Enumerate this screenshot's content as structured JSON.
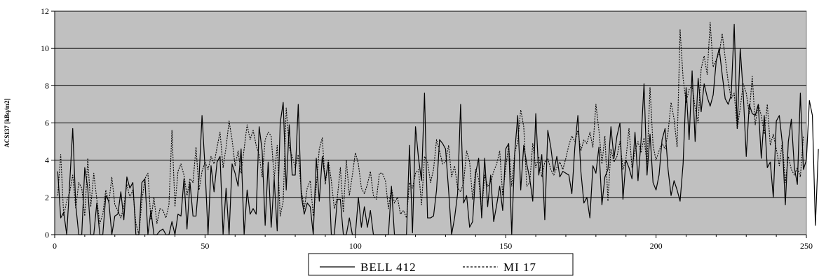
{
  "chart_data": {
    "type": "line",
    "title": "",
    "xlabel": "",
    "ylabel": "ACS137 [kBq/m2]",
    "xlim": [
      0,
      250
    ],
    "ylim": [
      0,
      12
    ],
    "xticks": [
      0,
      50,
      100,
      150,
      200,
      250
    ],
    "yticks": [
      0,
      2,
      4,
      6,
      8,
      10,
      12
    ],
    "x_tick_labels": [
      "0",
      "50",
      "100",
      "150",
      "200",
      "250"
    ],
    "y_tick_labels": [
      "0",
      "2",
      "4",
      "6",
      "8",
      "10",
      "12"
    ],
    "grid": "horizontal",
    "background": "#c0c0c0",
    "legend_position": "bottom",
    "series": [
      {
        "name": "BELL 412",
        "style": "solid",
        "x_start": 1,
        "values": [
          3.4,
          0.9,
          1.2,
          0,
          2.8,
          5.7,
          1.6,
          0,
          0,
          3.6,
          2.5,
          0,
          0,
          1.7,
          0,
          0,
          2.1,
          1.8,
          0,
          1.0,
          1.1,
          2.3,
          0.8,
          3.1,
          2.5,
          2.8,
          0,
          0,
          2.8,
          3.0,
          0,
          1.3,
          0,
          0,
          0.2,
          0.3,
          0,
          0,
          0.7,
          0,
          1.1,
          1.0,
          3.0,
          0.3,
          2.8,
          1.0,
          1.0,
          3.0,
          6.4,
          3.6,
          0,
          3.7,
          2.3,
          3.9,
          4.2,
          0,
          2.5,
          0,
          3.8,
          3.3,
          2.6,
          4.6,
          0,
          2.4,
          1.1,
          1.4,
          1.1,
          5.8,
          4.5,
          0.5,
          3.9,
          0.4,
          3.0,
          0.2,
          6.0,
          7.1,
          2.4,
          5.9,
          3.2,
          3.2,
          7.0,
          2.1,
          1.1,
          1.7,
          1.5,
          0,
          4.1,
          1.8,
          4.2,
          2.9,
          3.9,
          0,
          0,
          1.9,
          1.9,
          0,
          0,
          0.9,
          0,
          0,
          2.0,
          0.4,
          1.5,
          0.4,
          1.3,
          0,
          0,
          0,
          0,
          0,
          0,
          2.6,
          0,
          0,
          0,
          0,
          0,
          4.8,
          0.1,
          5.8,
          4.1,
          2.9,
          7.6,
          0.9,
          0.9,
          1.0,
          2.4,
          5.1,
          4.9,
          4.6,
          2.4,
          0,
          0.9,
          2.2,
          7.0,
          1.7,
          2.1,
          0.4,
          0.7,
          3.3,
          4.1,
          0.9,
          4.1,
          1.5,
          3.2,
          0.7,
          1.6,
          2.6,
          1.3,
          4.6,
          4.9,
          0,
          4.4,
          6.4,
          2.4,
          4.8,
          3.8,
          3.0,
          1.8,
          6.5,
          3.2,
          4.3,
          0.8,
          5.6,
          4.7,
          3.4,
          4.2,
          3.1,
          3.4,
          3.3,
          3.2,
          2.2,
          4.7,
          6.4,
          3.4,
          1.7,
          2.0,
          0.9,
          3.7,
          3.3,
          4.7,
          1.6,
          3.1,
          3.5,
          5.8,
          4.1,
          5.3,
          6.0,
          1.9,
          4.0,
          3.6,
          3.0,
          5.5,
          2.9,
          5.0,
          8.1,
          3.2,
          5.4,
          2.8,
          2.4,
          3.2,
          5.1,
          5.7,
          3.5,
          2.1,
          2.9,
          2.4,
          1.8,
          3.8,
          7.9,
          5.1,
          8.8,
          5.0,
          8.4,
          6.6,
          8.1,
          7.4,
          6.9,
          7.5,
          9.3,
          10.0,
          8.6,
          7.3,
          7.0,
          7.5,
          11.3,
          5.7,
          10.0,
          7.6,
          4.2,
          7.0,
          6.5,
          6.4,
          7.0,
          4.1,
          6.4,
          3.6,
          3.9,
          2.0,
          6.1,
          6.4,
          4.9,
          1.6,
          5.0,
          6.2,
          3.6,
          2.7,
          7.6,
          3.5,
          4.0,
          7.2,
          6.4,
          0.5,
          4.6
        ]
      },
      {
        "name": "MI 17",
        "style": "dotted",
        "x_start": 1,
        "values": [
          2.1,
          4.3,
          1.0,
          1.8,
          2.3,
          3.2,
          1.4,
          2.8,
          2.5,
          1.0,
          4.1,
          1.5,
          3.3,
          1.9,
          0.6,
          1.1,
          2.4,
          1.7,
          3.1,
          1.6,
          1.3,
          0.9,
          1.5,
          2.7,
          2.0,
          2.4,
          0.6,
          0,
          1.8,
          3.0,
          3.3,
          0.8,
          2.0,
          0.6,
          1.4,
          1.3,
          0.9,
          1.6,
          5.6,
          1.5,
          3.4,
          3.8,
          3.2,
          2.1,
          3.0,
          2.8,
          4.7,
          2.4,
          3.4,
          3.9,
          3.5,
          4.2,
          3.8,
          4.7,
          5.5,
          3.6,
          4.7,
          6.1,
          5.1,
          3.7,
          4.5,
          3.3,
          4.6,
          5.9,
          5.1,
          5.6,
          4.8,
          4.3,
          3.1,
          5.1,
          5.5,
          5.3,
          3.0,
          4.8,
          1.0,
          1.8,
          6.8,
          4.7,
          4.2,
          3.6,
          4.3,
          2.4,
          1.4,
          2.5,
          2.9,
          1.0,
          2.6,
          4.6,
          5.2,
          2.7,
          4.0,
          2.9,
          1.4,
          2.0,
          3.6,
          1.2,
          4.0,
          2.1,
          3.2,
          4.4,
          3.8,
          2.5,
          2.2,
          2.7,
          3.4,
          2.1,
          1.9,
          3.3,
          3.3,
          2.9,
          1.4,
          2.5,
          1.7,
          2.0,
          1.1,
          1.3,
          0.9,
          2.8,
          2.5,
          3.3,
          3.5,
          1.6,
          4.2,
          3.9,
          2.8,
          3.5,
          5.1,
          4.5,
          3.8,
          3.9,
          4.8,
          3.1,
          3.7,
          2.5,
          2.3,
          2.8,
          4.5,
          3.9,
          1.9,
          3.5,
          3.0,
          1.2,
          3.2,
          2.6,
          2.8,
          3.4,
          3.8,
          4.5,
          2.1,
          3.6,
          4.8,
          2.6,
          4.4,
          5.0,
          6.7,
          5.8,
          2.6,
          2.8,
          4.9,
          3.6,
          4.2,
          3.1,
          3.9,
          4.1,
          3.5,
          3.2,
          3.6,
          3.9,
          3.5,
          4.1,
          4.8,
          5.3,
          5.0,
          5.6,
          4.5,
          5.1,
          4.9,
          5.5,
          4.7,
          7.0,
          5.6,
          3.8,
          5.3,
          1.8,
          4.6,
          3.9,
          4.2,
          5.0,
          3.5,
          4.1,
          5.7,
          3.6,
          4.5,
          5.0,
          4.4,
          5.2,
          3.8,
          7.9,
          4.8,
          4.0,
          4.5,
          4.9,
          4.6,
          5.5,
          7.1,
          6.2,
          4.7,
          11.0,
          8.4,
          7.1,
          7.8,
          8.0,
          6.8,
          6.0,
          8.9,
          9.6,
          8.6,
          11.4,
          9.0,
          9.4,
          9.7,
          10.8,
          9.5,
          8.2,
          7.3,
          7.6,
          5.7,
          6.8,
          8.1,
          7.6,
          6.5,
          8.5,
          5.9,
          7.0,
          6.4,
          5.4,
          7.0,
          4.8,
          5.4,
          4.6,
          3.7,
          5.0,
          2.8,
          4.2,
          3.5,
          3.2,
          3.6,
          3.1,
          5.3
        ]
      }
    ]
  }
}
